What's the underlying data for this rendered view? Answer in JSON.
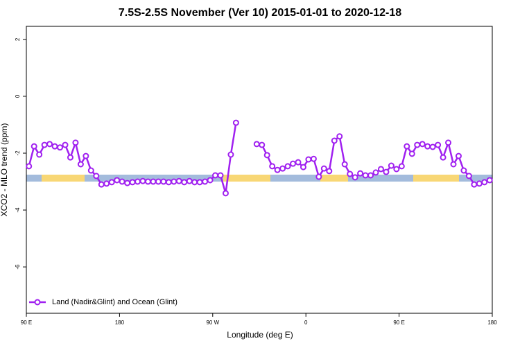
{
  "chart_data": {
    "type": "line",
    "title": "7.5S-2.5S November (Ver 10)   2015-01-01 to 2020-12-18",
    "x_label": "Longitude (deg E)",
    "y_label": "XCO2 - MLO trend (ppm)",
    "xlim": [
      90,
      540
    ],
    "ylim": [
      -7.63,
      2.46
    ],
    "xticks": [
      {
        "value": 90,
        "label": "90 E"
      },
      {
        "value": 180,
        "label": "180"
      },
      {
        "value": 270,
        "label": "90 W"
      },
      {
        "value": 360,
        "label": "0"
      },
      {
        "value": 450,
        "label": "90 E"
      },
      {
        "value": 540,
        "label": "180"
      }
    ],
    "yticks": [
      2,
      0,
      -2,
      -4,
      -6
    ],
    "legend": "bottom-left",
    "x": [
      92.5,
      97.5,
      102.5,
      107.5,
      112.5,
      117.5,
      122.5,
      127.5,
      132.5,
      137.5,
      142.5,
      147.5,
      152.5,
      157.5,
      162.5,
      167.5,
      172.5,
      177.5,
      182.5,
      187.5,
      192.5,
      197.5,
      202.5,
      207.5,
      212.5,
      217.5,
      222.5,
      227.5,
      232.5,
      237.5,
      242.5,
      247.5,
      252.5,
      257.5,
      262.5,
      267.5,
      272.5,
      277.5,
      282.5,
      287.5,
      292.5,
      297.5,
      302.5,
      307.5,
      312.5,
      317.5,
      322.5,
      327.5,
      332.5,
      337.5,
      342.5,
      347.5,
      352.5,
      357.5,
      362.5,
      367.5,
      372.5,
      377.5,
      382.5,
      387.5,
      392.5,
      397.5,
      402.5,
      407.5,
      412.5,
      417.5,
      422.5,
      427.5,
      432.5,
      437.5,
      442.5,
      447.5,
      452.5,
      457.5,
      462.5,
      467.5,
      472.5,
      477.5,
      482.5,
      487.5,
      492.5,
      497.5,
      502.5,
      507.5,
      512.5,
      517.5,
      522.5,
      527.5,
      532.5,
      537.5
    ],
    "series": [
      {
        "name": "Land (Nadir&Glint) and Ocean (Glint)",
        "color": "#a020f0",
        "values": [
          -2.46,
          -1.76,
          -2.05,
          -1.71,
          -1.68,
          -1.76,
          -1.8,
          -1.71,
          -2.15,
          -1.63,
          -2.39,
          -2.1,
          -2.61,
          -2.8,
          -3.1,
          -3.07,
          -3.02,
          -2.95,
          -3.0,
          -3.05,
          -3.02,
          -3.0,
          -2.98,
          -3.0,
          -3.0,
          -3.0,
          -3.0,
          -3.02,
          -3.0,
          -2.98,
          -3.02,
          -2.98,
          -3.02,
          -3.02,
          -3.0,
          -2.95,
          -2.78,
          -2.78,
          -3.41,
          -2.05,
          -0.93,
          null,
          null,
          null,
          -1.68,
          -1.71,
          -2.07,
          -2.46,
          -2.59,
          -2.54,
          -2.46,
          -2.37,
          -2.32,
          -2.49,
          -2.22,
          -2.2,
          -2.83,
          -2.54,
          -2.63,
          -1.56,
          -1.41,
          -2.39,
          -2.73,
          -2.85,
          -2.71,
          -2.78,
          -2.78,
          -2.68,
          -2.56,
          -2.66,
          -2.44,
          -2.56,
          -2.46,
          -1.76,
          -2.02,
          -1.71,
          -1.68,
          -1.76,
          -1.78,
          -1.71,
          -2.15,
          -1.63,
          -2.39,
          -2.1,
          -2.61,
          -2.8,
          -3.1,
          -3.07,
          -3.02,
          -2.95
        ]
      }
    ]
  }
}
